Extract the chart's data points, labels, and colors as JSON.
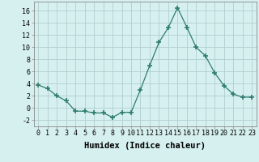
{
  "x": [
    0,
    1,
    2,
    3,
    4,
    5,
    6,
    7,
    8,
    9,
    10,
    11,
    12,
    13,
    14,
    15,
    16,
    17,
    18,
    19,
    20,
    21,
    22,
    23
  ],
  "y": [
    3.8,
    3.2,
    2.0,
    1.2,
    -0.5,
    -0.5,
    -0.8,
    -0.8,
    -1.5,
    -0.7,
    -0.7,
    3.0,
    7.0,
    10.8,
    13.2,
    16.5,
    13.3,
    10.0,
    8.6,
    5.8,
    3.7,
    2.3,
    1.8,
    1.8
  ],
  "line_color": "#2e7d6e",
  "marker": "+",
  "marker_size": 4,
  "bg_color": "#d6f0ef",
  "grid_color": "#b0cece",
  "xlabel": "Humidex (Indice chaleur)",
  "ylim": [
    -3,
    17.5
  ],
  "xlim": [
    -0.5,
    23.5
  ],
  "yticks": [
    -2,
    0,
    2,
    4,
    6,
    8,
    10,
    12,
    14,
    16
  ],
  "xticks": [
    0,
    1,
    2,
    3,
    4,
    5,
    6,
    7,
    8,
    9,
    10,
    11,
    12,
    13,
    14,
    15,
    16,
    17,
    18,
    19,
    20,
    21,
    22,
    23
  ],
  "tick_fontsize": 6,
  "xlabel_fontsize": 7.5
}
